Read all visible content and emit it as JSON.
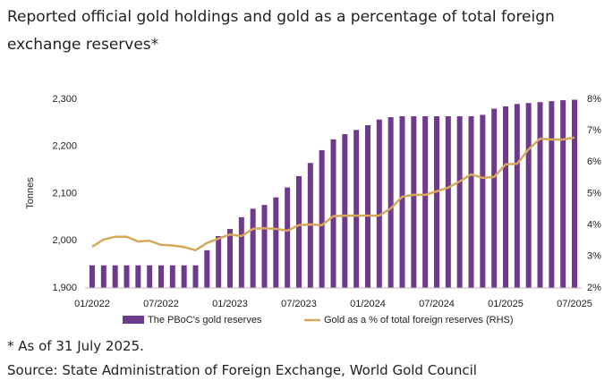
{
  "chart_data": {
    "type": "combo",
    "title": "Reported official gold holdings and gold as a percentage of total foreign exchange reserves*",
    "ylabel": "Tonnes",
    "categories": [
      "01/2022",
      null,
      null,
      null,
      null,
      null,
      "07/2022",
      null,
      null,
      null,
      null,
      null,
      "01/2023",
      null,
      null,
      null,
      null,
      null,
      "07/2023",
      null,
      null,
      null,
      null,
      null,
      "01/2024",
      null,
      null,
      null,
      null,
      null,
      "07/2024",
      null,
      null,
      null,
      null,
      null,
      "01/2025",
      null,
      null,
      null,
      null,
      null,
      "07/2025"
    ],
    "series": [
      {
        "name": "The PBoC's gold reserves",
        "type": "bar",
        "color": "#6e3a8e",
        "values": [
          1948,
          1948,
          1948,
          1948,
          1948,
          1948,
          1948,
          1948,
          1948,
          1948,
          1980,
          2010,
          2025,
          2050,
          2068,
          2076,
          2092,
          2113,
          2137,
          2165,
          2192,
          2215,
          2226,
          2235,
          2245,
          2257,
          2262,
          2264,
          2264,
          2264,
          2264,
          2264,
          2264,
          2264,
          2267,
          2280,
          2285,
          2290,
          2292,
          2294,
          2296,
          2298,
          2299
        ]
      },
      {
        "name": "Gold as a % of total foreign reserves (RHS)",
        "type": "line",
        "axis": "y2",
        "color": "#d6a95a",
        "values": [
          3.31,
          3.54,
          3.63,
          3.63,
          3.48,
          3.5,
          3.37,
          3.35,
          3.3,
          3.2,
          3.43,
          3.57,
          3.7,
          3.65,
          3.88,
          3.9,
          3.88,
          3.82,
          4.0,
          4.02,
          4.0,
          4.28,
          4.3,
          4.3,
          4.3,
          4.3,
          4.53,
          4.9,
          4.96,
          4.96,
          5.07,
          5.19,
          5.39,
          5.61,
          5.5,
          5.53,
          5.93,
          5.95,
          6.41,
          6.75,
          6.72,
          6.72,
          6.78
        ]
      }
    ],
    "ylim": [
      1900,
      2300
    ],
    "yticks": [
      {
        "value": 1900,
        "label": "1,900"
      },
      {
        "value": 2000,
        "label": "2,000"
      },
      {
        "value": 2100,
        "label": "2,100"
      },
      {
        "value": 2200,
        "label": "2,200"
      },
      {
        "value": 2300,
        "label": "2,300"
      }
    ],
    "y2lim": [
      2,
      8
    ],
    "y2ticks": [
      {
        "value": 2,
        "label": "2%"
      },
      {
        "value": 3,
        "label": "3%"
      },
      {
        "value": 4,
        "label": "4%"
      },
      {
        "value": 5,
        "label": "5%"
      },
      {
        "value": 6,
        "label": "6%"
      },
      {
        "value": 7,
        "label": "7%"
      },
      {
        "value": 8,
        "label": "8%"
      }
    ],
    "grid": false,
    "legend": "bottom",
    "notes": [
      "* As of 31 July 2025.",
      "Source: State Administration of Foreign Exchange, World Gold Council"
    ]
  }
}
